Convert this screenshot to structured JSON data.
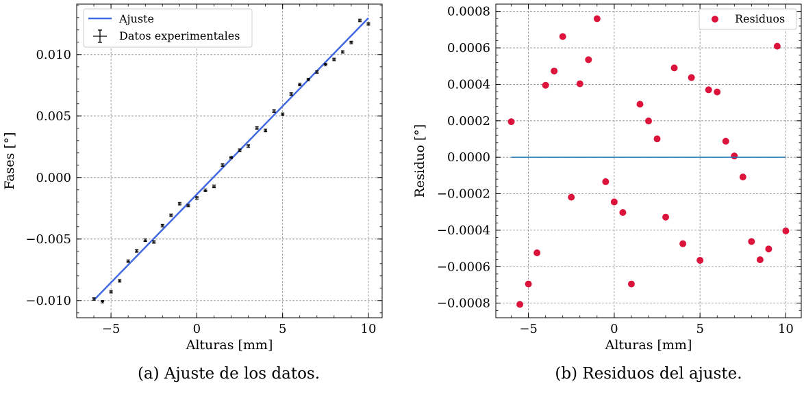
{
  "chart_data": [
    {
      "type": "scatter",
      "xlabel": "Alturas [mm]",
      "ylabel": "Fases [°]",
      "caption": "(a) Ajuste de los datos.",
      "xlim": [
        -7,
        10.8
      ],
      "ylim": [
        -0.0114,
        0.0141
      ],
      "xticks": [
        -5,
        0,
        5,
        10
      ],
      "xtick_labels": [
        "−5",
        "0",
        "5",
        "10"
      ],
      "yticks": [
        -0.01,
        -0.005,
        0.0,
        0.005,
        0.01
      ],
      "ytick_labels": [
        "−0.010",
        "−0.005",
        "0.000",
        "0.005",
        "0.010"
      ],
      "grid": true,
      "legend_position": "top-left",
      "legend": [
        "Ajuste",
        "Datos experimentales"
      ],
      "series": [
        {
          "name": "Ajuste",
          "kind": "line",
          "color": "#4169e1",
          "x": [
            -6,
            10
          ],
          "y": [
            -0.00997,
            0.01297
          ]
        },
        {
          "name": "Datos experimentales",
          "kind": "errorbar",
          "color": "#000000",
          "x": [
            -6,
            -5.5,
            -5,
            -4.5,
            -4,
            -3.5,
            -3,
            -2.5,
            -2,
            -1.5,
            -1,
            -0.5,
            0,
            0.5,
            1,
            1.5,
            2,
            2.5,
            3,
            3.5,
            4,
            4.5,
            5,
            5.5,
            6,
            6.5,
            7,
            7.5,
            8,
            8.5,
            9,
            9.5,
            10
          ],
          "y": [
            -0.00988,
            -0.01009,
            -0.00929,
            -0.0084,
            -0.0068,
            -0.00597,
            -0.0051,
            -0.00524,
            -0.00391,
            -0.00307,
            -0.00213,
            -0.00228,
            -0.00166,
            -0.00104,
            -0.00072,
            0.00101,
            0.00162,
            0.00222,
            0.00256,
            0.00403,
            0.00383,
            0.0054,
            0.00515,
            0.00679,
            0.00756,
            0.00797,
            0.00858,
            0.00919,
            0.0096,
            0.01021,
            0.01098,
            0.01277,
            0.01249
          ],
          "yerr": 0.0001,
          "xerr": 0.1
        }
      ]
    },
    {
      "type": "scatter",
      "xlabel": "Alturas [mm]",
      "ylabel": "Residuo [°]",
      "caption": "(b) Residuos del ajuste.",
      "xlim": [
        -6.9,
        10.9
      ],
      "ylim": [
        -0.00088,
        0.00084
      ],
      "xticks": [
        -5,
        0,
        5,
        10
      ],
      "xtick_labels": [
        "−5",
        "0",
        "5",
        "10"
      ],
      "yticks": [
        -0.0008,
        -0.0006,
        -0.0004,
        -0.0002,
        0.0,
        0.0002,
        0.0004,
        0.0006,
        0.0008
      ],
      "ytick_labels": [
        "−0.0008",
        "−0.0006",
        "−0.0004",
        "−0.0002",
        "0.0000",
        "0.0002",
        "0.0004",
        "0.0006",
        "0.0008"
      ],
      "grid": true,
      "legend_position": "top-right",
      "legend": [
        "Residuos"
      ],
      "series": [
        {
          "name": "Residuos",
          "kind": "scatter",
          "color": "#dc143c",
          "x": [
            -6,
            -5.5,
            -5,
            -4.5,
            -4,
            -3.5,
            -3,
            -2.5,
            -2,
            -1.5,
            -1,
            -0.5,
            0,
            0.5,
            1,
            1.5,
            2,
            2.5,
            3,
            3.5,
            4,
            4.5,
            5,
            5.5,
            6,
            6.5,
            7,
            7.5,
            8,
            8.5,
            9,
            9.5,
            10
          ],
          "y": [
            0.000195,
            -0.000807,
            -0.000695,
            -0.000524,
            0.000395,
            0.000473,
            0.000662,
            -0.000219,
            0.000403,
            0.000535,
            0.00076,
            -0.000134,
            -0.000245,
            -0.000303,
            -0.000695,
            0.000291,
            0.000199,
            0.000101,
            -0.000328,
            0.00049,
            -0.000474,
            0.000437,
            -0.000565,
            0.00037,
            0.000358,
            8.8e-05,
            7e-06,
            -0.000108,
            -0.000462,
            -0.000562,
            -0.000503,
            0.000609,
            -0.000404
          ]
        },
        {
          "name": "",
          "kind": "hline",
          "color": "#1f77b4",
          "x": [
            -6,
            10
          ],
          "y": [
            0,
            0
          ]
        }
      ]
    }
  ]
}
